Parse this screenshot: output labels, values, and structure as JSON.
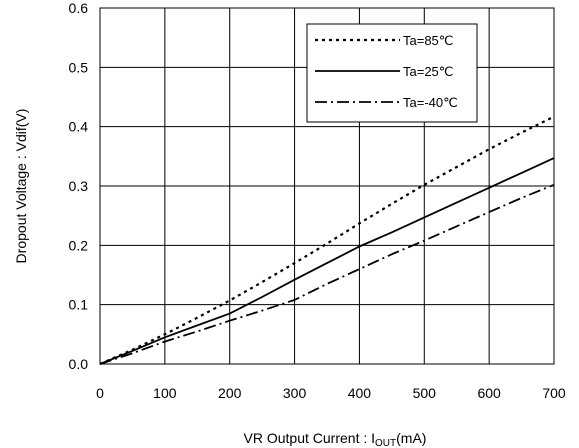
{
  "chart_data": {
    "type": "line",
    "title": "",
    "xlabel": "VR Output Current : I",
    "xlabel_sub": "OUT",
    "xlabel_suffix": "(mA)",
    "ylabel": "Dropout Voltage : Vdif(V)",
    "xlim": [
      0,
      700
    ],
    "ylim": [
      0,
      0.6
    ],
    "x_ticks": [
      "0",
      "100",
      "200",
      "300",
      "400",
      "500",
      "600",
      "700"
    ],
    "y_ticks": [
      "0.0",
      "0.1",
      "0.2",
      "0.3",
      "0.4",
      "0.5",
      "0.6"
    ],
    "grid": true,
    "legend_position": "top-right",
    "series": [
      {
        "name": "Ta=85℃",
        "style": "dotted",
        "x": [
          0,
          50,
          100,
          150,
          200,
          250,
          300,
          350,
          400,
          450,
          500,
          550,
          600,
          650,
          700
        ],
        "y": [
          0.0,
          0.024,
          0.05,
          0.078,
          0.107,
          0.138,
          0.17,
          0.203,
          0.237,
          0.27,
          0.302,
          0.332,
          0.362,
          0.39,
          0.417
        ]
      },
      {
        "name": "Ta=25℃",
        "style": "solid",
        "x": [
          0,
          50,
          100,
          150,
          200,
          250,
          300,
          350,
          400,
          450,
          500,
          550,
          600,
          650,
          700
        ],
        "y": [
          0.0,
          0.022,
          0.045,
          0.065,
          0.085,
          0.113,
          0.142,
          0.17,
          0.198,
          0.222,
          0.247,
          0.272,
          0.297,
          0.322,
          0.347
        ]
      },
      {
        "name": "Ta=-40℃",
        "style": "dashdot",
        "x": [
          0,
          50,
          100,
          150,
          200,
          250,
          300,
          350,
          400,
          450,
          500,
          550,
          600,
          650,
          700
        ],
        "y": [
          0.0,
          0.018,
          0.038,
          0.055,
          0.073,
          0.09,
          0.108,
          0.135,
          0.16,
          0.185,
          0.208,
          0.232,
          0.256,
          0.28,
          0.302
        ]
      }
    ]
  }
}
